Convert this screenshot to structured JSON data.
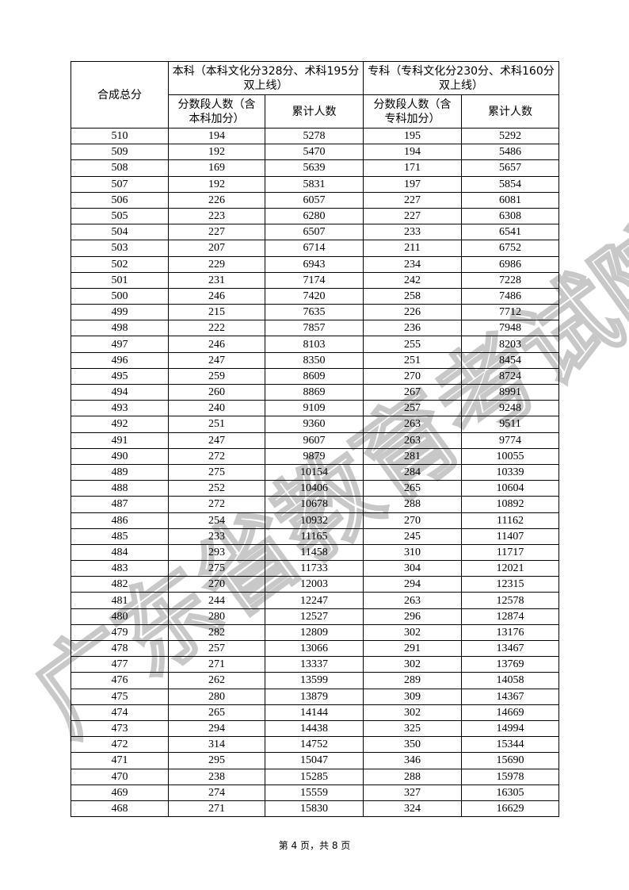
{
  "table": {
    "headers": {
      "total": "合成总分",
      "benke_group": "本科（本科文化分328分、术科195分双上线）",
      "zhuanke_group": "专科（专科文化分230分、术科160分双上线）",
      "benke_count": "分数段人数（含本科加分）",
      "benke_cum": "累计人数",
      "zhuanke_count": "分数段人数（含专科加分）",
      "zhuanke_cum": "累计人数"
    },
    "rows": [
      [
        "510",
        "194",
        "5278",
        "195",
        "5292"
      ],
      [
        "509",
        "192",
        "5470",
        "194",
        "5486"
      ],
      [
        "508",
        "169",
        "5639",
        "171",
        "5657"
      ],
      [
        "507",
        "192",
        "5831",
        "197",
        "5854"
      ],
      [
        "506",
        "226",
        "6057",
        "227",
        "6081"
      ],
      [
        "505",
        "223",
        "6280",
        "227",
        "6308"
      ],
      [
        "504",
        "227",
        "6507",
        "233",
        "6541"
      ],
      [
        "503",
        "207",
        "6714",
        "211",
        "6752"
      ],
      [
        "502",
        "229",
        "6943",
        "234",
        "6986"
      ],
      [
        "501",
        "231",
        "7174",
        "242",
        "7228"
      ],
      [
        "500",
        "246",
        "7420",
        "258",
        "7486"
      ],
      [
        "499",
        "215",
        "7635",
        "226",
        "7712"
      ],
      [
        "498",
        "222",
        "7857",
        "236",
        "7948"
      ],
      [
        "497",
        "246",
        "8103",
        "255",
        "8203"
      ],
      [
        "496",
        "247",
        "8350",
        "251",
        "8454"
      ],
      [
        "495",
        "259",
        "8609",
        "270",
        "8724"
      ],
      [
        "494",
        "260",
        "8869",
        "267",
        "8991"
      ],
      [
        "493",
        "240",
        "9109",
        "257",
        "9248"
      ],
      [
        "492",
        "251",
        "9360",
        "263",
        "9511"
      ],
      [
        "491",
        "247",
        "9607",
        "263",
        "9774"
      ],
      [
        "490",
        "272",
        "9879",
        "281",
        "10055"
      ],
      [
        "489",
        "275",
        "10154",
        "284",
        "10339"
      ],
      [
        "488",
        "252",
        "10406",
        "265",
        "10604"
      ],
      [
        "487",
        "272",
        "10678",
        "288",
        "10892"
      ],
      [
        "486",
        "254",
        "10932",
        "270",
        "11162"
      ],
      [
        "485",
        "233",
        "11165",
        "245",
        "11407"
      ],
      [
        "484",
        "293",
        "11458",
        "310",
        "11717"
      ],
      [
        "483",
        "275",
        "11733",
        "304",
        "12021"
      ],
      [
        "482",
        "270",
        "12003",
        "294",
        "12315"
      ],
      [
        "481",
        "244",
        "12247",
        "263",
        "12578"
      ],
      [
        "480",
        "280",
        "12527",
        "296",
        "12874"
      ],
      [
        "479",
        "282",
        "12809",
        "302",
        "13176"
      ],
      [
        "478",
        "257",
        "13066",
        "291",
        "13467"
      ],
      [
        "477",
        "271",
        "13337",
        "302",
        "13769"
      ],
      [
        "476",
        "262",
        "13599",
        "289",
        "14058"
      ],
      [
        "475",
        "280",
        "13879",
        "309",
        "14367"
      ],
      [
        "474",
        "265",
        "14144",
        "302",
        "14669"
      ],
      [
        "473",
        "294",
        "14438",
        "325",
        "14994"
      ],
      [
        "472",
        "314",
        "14752",
        "350",
        "15344"
      ],
      [
        "471",
        "295",
        "15047",
        "346",
        "15690"
      ],
      [
        "470",
        "238",
        "15285",
        "288",
        "15978"
      ],
      [
        "469",
        "274",
        "15559",
        "327",
        "16305"
      ],
      [
        "468",
        "271",
        "15830",
        "324",
        "16629"
      ]
    ]
  },
  "footer": "第 4 页，共 8 页",
  "watermark": "广东省教育考试院",
  "colors": {
    "watermark": "#c8c8c8"
  }
}
